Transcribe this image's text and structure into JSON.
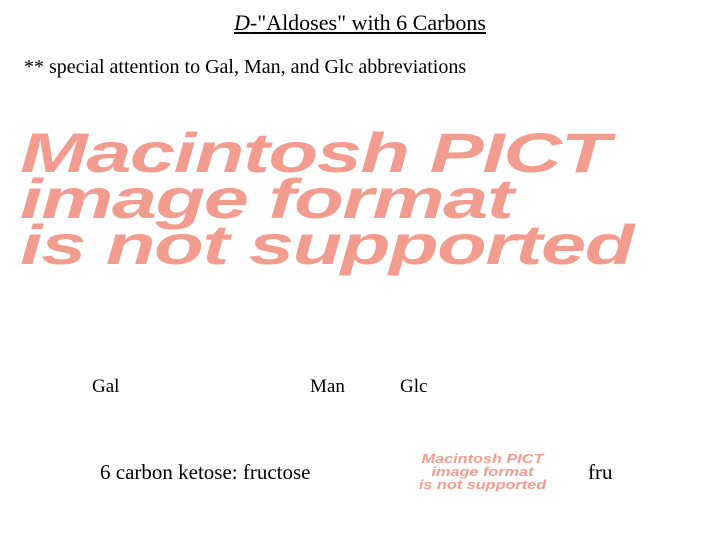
{
  "colors": {
    "background": "#ffffff",
    "text": "#000000",
    "pict_placeholder": "#f29c8f"
  },
  "title": {
    "prefix_italic": "D",
    "rest": "-\"Aldoses\" with 6 Carbons",
    "fontsize": 22
  },
  "note": {
    "text": "** special attention to Gal, Man, and Glc abbreviations",
    "fontsize": 20
  },
  "pict_large": {
    "line1": "Macintosh PICT",
    "line2": "image format",
    "line3": "is not supported",
    "font_family": "Arial",
    "font_weight": 800,
    "font_style": "italic",
    "fontsize": 56,
    "color": "#f29c8f"
  },
  "pict_small": {
    "line1": "Macintosh PICT",
    "line2": "image format",
    "line3": "is not supported",
    "fontsize": 13,
    "color": "#f29c8f"
  },
  "labels": {
    "gal": "Gal",
    "man": "Man",
    "glc": "Glc",
    "fontsize": 19
  },
  "ketose_line": {
    "text": "6 carbon ketose:  fructose",
    "fontsize": 21
  },
  "fru_label": {
    "text": "fru",
    "fontsize": 21
  }
}
